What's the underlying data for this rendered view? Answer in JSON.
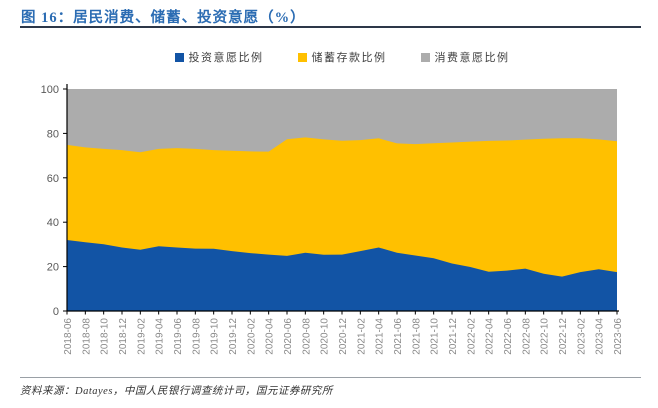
{
  "figure": {
    "title": "图 16：居民消费、储蓄、投资意愿（%）",
    "source": "资料来源：Datayes，中国人民银行调查统计司，国元证券研究所"
  },
  "colors": {
    "title_blue": "#2b6cb3",
    "title_rule": "#2d3748",
    "investment_blue": "#1254a5",
    "savings_yellow": "#ffc000",
    "consumption_gray": "#acacac",
    "axis_black": "#000000",
    "x_label_gray": "#8a8a8a",
    "y_label_gray": "#595959"
  },
  "chart_data": {
    "type": "area",
    "stacked": true,
    "stack_total": 100,
    "title": "居民消费、储蓄、投资意愿（%）",
    "xlabel": "",
    "ylabel": "",
    "ylim": [
      0,
      100
    ],
    "y_ticks": [
      0,
      20,
      40,
      60,
      80,
      100
    ],
    "grid": false,
    "legend_position": "top-center",
    "x_label_rotation": -90,
    "x": [
      "2018-06",
      "2018-08",
      "2018-10",
      "2018-12",
      "2019-02",
      "2019-04",
      "2019-06",
      "2019-08",
      "2019-10",
      "2019-12",
      "2020-02",
      "2020-04",
      "2020-06",
      "2020-08",
      "2020-10",
      "2020-12",
      "2021-02",
      "2021-04",
      "2021-06",
      "2021-08",
      "2021-10",
      "2021-12",
      "2022-02",
      "2022-04",
      "2022-06",
      "2022-08",
      "2022-10",
      "2022-12",
      "2023-02",
      "2023-04",
      "2023-06"
    ],
    "series": [
      {
        "key": "investment",
        "name": "投资意愿比例",
        "color": "#1254a5",
        "values": [
          32.0,
          31.0,
          30.1,
          28.6,
          27.6,
          29.2,
          28.6,
          28.1,
          28.0,
          27.0,
          26.1,
          25.4,
          24.8,
          26.2,
          25.3,
          25.4,
          27.0,
          28.6,
          26.2,
          25.0,
          23.8,
          21.4,
          19.8,
          17.7,
          18.2,
          19.1,
          16.8,
          15.5,
          17.5,
          18.8,
          17.5
        ]
      },
      {
        "key": "savings",
        "name": "储蓄存款比例",
        "color": "#ffc000",
        "values": [
          42.8,
          42.7,
          42.9,
          43.9,
          43.9,
          43.8,
          44.8,
          44.9,
          44.5,
          45.2,
          45.8,
          46.4,
          52.6,
          52.0,
          52.0,
          51.3,
          50.0,
          49.2,
          49.3,
          50.2,
          51.8,
          54.5,
          56.5,
          58.9,
          58.6,
          58.1,
          60.8,
          62.3,
          60.3,
          58.5,
          59.0
        ]
      },
      {
        "key": "consumption",
        "name": "消费意愿比例",
        "color": "#acacac",
        "values": [
          25.2,
          26.3,
          27.0,
          27.5,
          28.5,
          27.0,
          26.6,
          27.0,
          27.5,
          27.8,
          28.1,
          28.2,
          22.6,
          21.8,
          22.7,
          23.3,
          23.0,
          22.2,
          24.5,
          24.8,
          24.4,
          24.1,
          23.7,
          23.4,
          23.2,
          22.8,
          22.4,
          22.2,
          22.2,
          22.7,
          23.5
        ]
      }
    ]
  }
}
